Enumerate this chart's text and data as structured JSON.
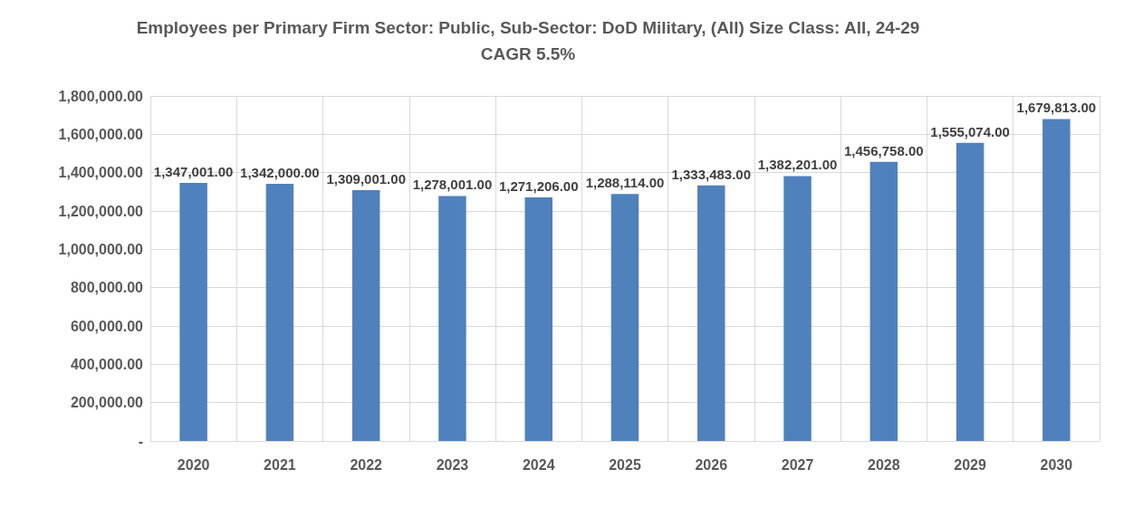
{
  "chart_data": {
    "type": "bar",
    "title": "Employees per Primary Firm Sector: Public, Sub-Sector: DoD Military, (All) Size Class: All, 24-29",
    "subtitle": "CAGR 5.5%",
    "categories": [
      "2020",
      "2021",
      "2022",
      "2023",
      "2024",
      "2025",
      "2026",
      "2027",
      "2028",
      "2029",
      "2030"
    ],
    "values": [
      1347001,
      1342000,
      1309001,
      1278001,
      1271206,
      1288114,
      1333483,
      1382201,
      1456758,
      1555074,
      1679813
    ],
    "value_labels": [
      "1,347,001.00",
      "1,342,000.00",
      "1,309,001.00",
      "1,278,001.00",
      "1,271,206.00",
      "1,288,114.00",
      "1,333,483.00",
      "1,382,201.00",
      "1,456,758.00",
      "1,555,074.00",
      "1,679,813.00"
    ],
    "color": "#4f81bd",
    "ylim": [
      0,
      1800000
    ],
    "yticks": [
      {
        "value": 0,
        "label": "-"
      },
      {
        "value": 200000,
        "label": "200,000.00"
      },
      {
        "value": 400000,
        "label": "400,000.00"
      },
      {
        "value": 600000,
        "label": "600,000.00"
      },
      {
        "value": 800000,
        "label": "800,000.00"
      },
      {
        "value": 1000000,
        "label": "1,000,000.00"
      },
      {
        "value": 1200000,
        "label": "1,200,000.00"
      },
      {
        "value": 1400000,
        "label": "1,400,000.00"
      },
      {
        "value": 1600000,
        "label": "1,600,000.00"
      },
      {
        "value": 1800000,
        "label": "1,800,000.00"
      }
    ],
    "grid": true
  }
}
